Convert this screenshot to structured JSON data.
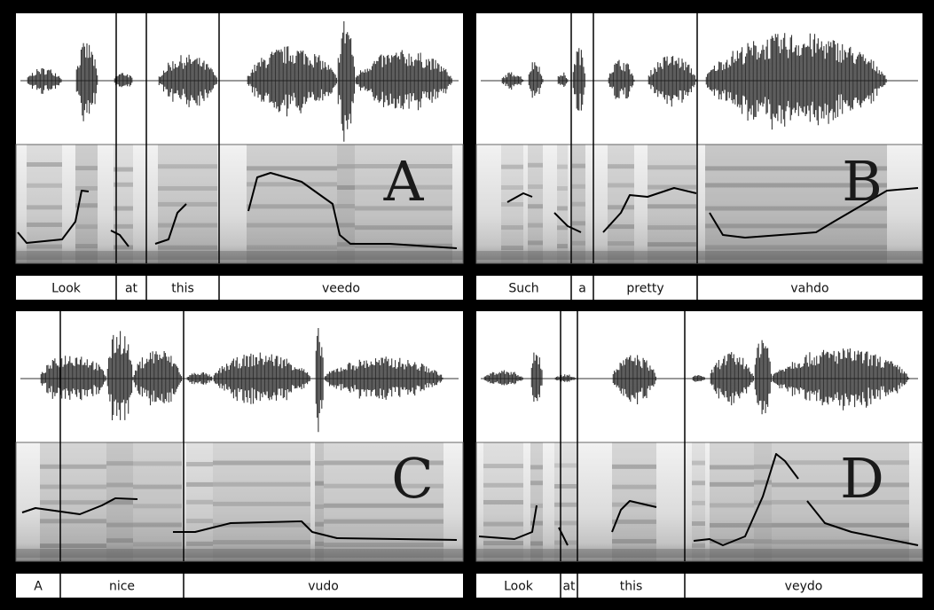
{
  "panels": [
    {
      "letter": "A",
      "words": [
        "Look",
        "at",
        "this",
        "veedo"
      ]
    },
    {
      "letter": "B",
      "words": [
        "Such",
        "a",
        "pretty",
        "vahdo"
      ]
    },
    {
      "letter": "C",
      "words": [
        "A",
        "nice",
        "vudo"
      ]
    },
    {
      "letter": "D",
      "words": [
        "Look",
        "at",
        "this",
        "veydo"
      ]
    }
  ]
}
